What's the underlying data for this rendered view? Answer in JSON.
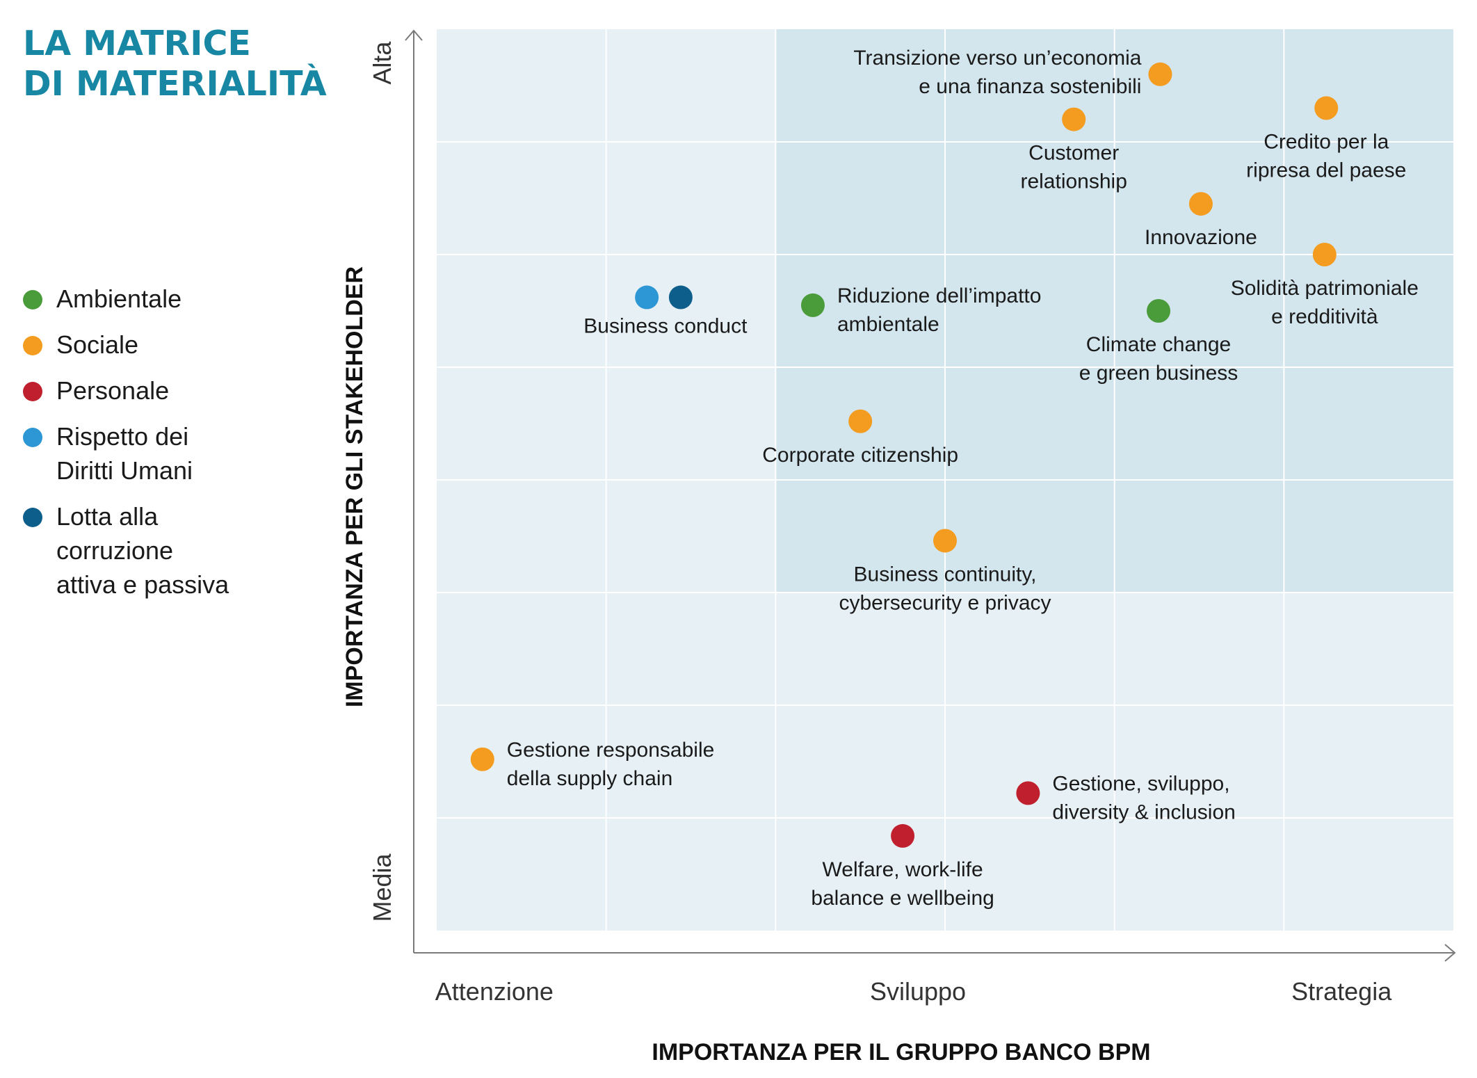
{
  "title_lines": [
    "LA MATRICE",
    "DI MATERIALITÀ"
  ],
  "colors": {
    "title": "#1787a3",
    "plot_bg": "#e6f0f5",
    "highlight_bg": "#d3e5ed",
    "grid": "#ffffff",
    "axis": "#7a7a7a"
  },
  "legend": [
    {
      "label": "Ambientale",
      "color": "#4a9b3a"
    },
    {
      "label": "Sociale",
      "color": "#f39c1f"
    },
    {
      "label": "Personale",
      "color": "#c0202e"
    },
    {
      "label": "Rispetto dei\nDiritti Umani",
      "color": "#2c97d4"
    },
    {
      "label": "Lotta alla\ncorruzione\nattiva e passiva",
      "color": "#0e5e8c"
    }
  ],
  "chart_data": {
    "type": "scatter",
    "title": "",
    "xlabel": "IMPORTANZA PER IL GRUPPO BANCO BPM",
    "ylabel": "IMPORTANZA PER GLI STAKEHOLDER",
    "xlim": [
      0,
      6
    ],
    "ylim": [
      0,
      8
    ],
    "x_ticks": [
      {
        "label": "Attenzione",
        "value": 0.34
      },
      {
        "label": "Sviluppo",
        "value": 2.84
      },
      {
        "label": "Strategia",
        "value": 5.34
      }
    ],
    "y_ticks": [
      {
        "label": "Media",
        "value": 0.38
      },
      {
        "label": "Alta",
        "value": 7.7
      }
    ],
    "highlight_region": {
      "x": [
        2,
        6
      ],
      "y": [
        3,
        8
      ]
    },
    "grid": true,
    "points": [
      {
        "label": "Transizione verso un’economia\ne una finanza sostenibili",
        "category": "Sociale",
        "color": "#f39c1f",
        "x": 4.27,
        "y": 7.6,
        "label_pos": "left"
      },
      {
        "label": "Customer\nrelationship",
        "category": "Sociale",
        "color": "#f39c1f",
        "x": 3.76,
        "y": 7.2,
        "label_pos": "below"
      },
      {
        "label": "Credito per la\nripresa del paese",
        "category": "Sociale",
        "color": "#f39c1f",
        "x": 5.25,
        "y": 7.3,
        "label_pos": "below"
      },
      {
        "label": "Innovazione",
        "category": "Sociale",
        "color": "#f39c1f",
        "x": 4.51,
        "y": 6.45,
        "label_pos": "below"
      },
      {
        "label": "Solidità patrimoniale\ne redditività",
        "category": "Sociale",
        "color": "#f39c1f",
        "x": 5.24,
        "y": 6.0,
        "label_pos": "below"
      },
      {
        "label": "Climate change\ne green business",
        "category": "Ambientale",
        "color": "#4a9b3a",
        "x": 4.26,
        "y": 5.5,
        "label_pos": "below"
      },
      {
        "label": "Riduzione dell’impatto\nambientale",
        "category": "Ambientale",
        "color": "#4a9b3a",
        "x": 2.22,
        "y": 5.55,
        "label_pos": "right"
      },
      {
        "label": "",
        "category": "Rispetto dei Diritti Umani",
        "color": "#2c97d4",
        "x": 1.24,
        "y": 5.62,
        "label_pos": "none"
      },
      {
        "label": "Business conduct",
        "category": "Lotta alla corruzione attiva e passiva",
        "color": "#0e5e8c",
        "x": 1.44,
        "y": 5.62,
        "label_pos": "below-left"
      },
      {
        "label": "Corporate citizenship",
        "category": "Sociale",
        "color": "#f39c1f",
        "x": 2.5,
        "y": 4.52,
        "label_pos": "below"
      },
      {
        "label": "Business continuity,\ncybersecurity e privacy",
        "category": "Sociale",
        "color": "#f39c1f",
        "x": 3.0,
        "y": 3.46,
        "label_pos": "below"
      },
      {
        "label": "Gestione responsabile\ndella supply chain",
        "category": "Sociale",
        "color": "#f39c1f",
        "x": 0.27,
        "y": 1.52,
        "label_pos": "right"
      },
      {
        "label": "Gestione, sviluppo,\ndiversity & inclusion",
        "category": "Personale",
        "color": "#c0202e",
        "x": 3.49,
        "y": 1.22,
        "label_pos": "right"
      },
      {
        "label": "Welfare, work-life\nbalance e wellbeing",
        "category": "Personale",
        "color": "#c0202e",
        "x": 2.75,
        "y": 0.84,
        "label_pos": "below"
      }
    ]
  }
}
